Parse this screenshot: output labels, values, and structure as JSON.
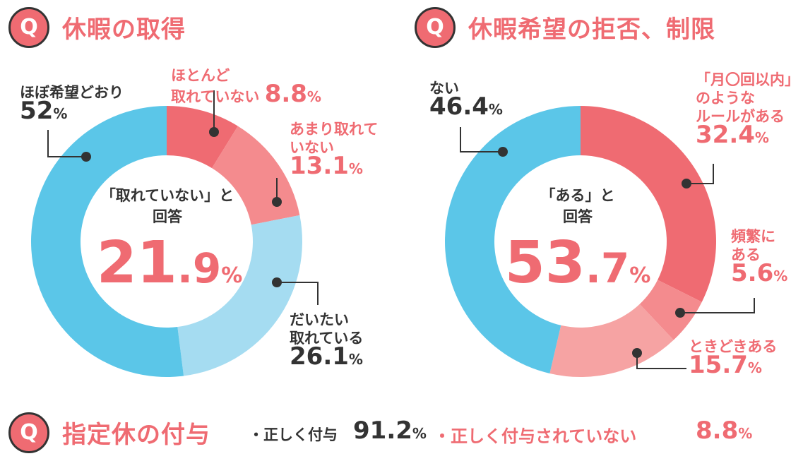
{
  "chart_data": [
    {
      "type": "pie",
      "title": "休暇の取得",
      "center_caption_1": "「取れていない」と",
      "center_caption_2": "回答",
      "center_value_int": "21",
      "center_value_dec": ".9",
      "center_value_unit": "%",
      "slices": [
        {
          "label_1": "ほとんど",
          "label_2": "取れていない",
          "value": 8.8,
          "value_text": "8.8",
          "color": "#ef6b72"
        },
        {
          "label_1": "あまり取れて",
          "label_2": "いない",
          "value": 13.1,
          "value_text": "13.1",
          "color": "#f48b8e"
        },
        {
          "label_1": "だいたい",
          "label_2": "取れている",
          "value": 26.1,
          "value_text": "26.1",
          "color": "#a5dcf1"
        },
        {
          "label_1": "ほぼ希望どおり",
          "label_2": "",
          "value": 52,
          "value_text": "52",
          "color": "#5bc6e8"
        }
      ]
    },
    {
      "type": "pie",
      "title": "休暇希望の拒否、制限",
      "center_caption_1": "「ある」と",
      "center_caption_2": "回答",
      "center_value_int": "53",
      "center_value_dec": ".7",
      "center_value_unit": "%",
      "slices": [
        {
          "label_1": "「月〇回以内」",
          "label_2": "のような",
          "label_3": "ルールがある",
          "value": 32.4,
          "value_text": "32.4",
          "color": "#ef6b72"
        },
        {
          "label_1": "頻繁に",
          "label_2": "ある",
          "value": 5.6,
          "value_text": "5.6",
          "color": "#f48b8e"
        },
        {
          "label_1": "ときどきある",
          "value": 15.7,
          "value_text": "15.7",
          "color": "#f6a3a3"
        },
        {
          "label_1": "ない",
          "value": 46.4,
          "value_text": "46.4",
          "color": "#5bc6e8"
        }
      ]
    }
  ],
  "q_label": "Q",
  "q3": {
    "title": "指定休の付与",
    "item1_label": "・正しく付与",
    "item1_value": "91.2",
    "item2_label": "・正しく付与されていない",
    "item2_value": "8.8",
    "unit": "%"
  },
  "colors": {
    "accent": "#ef6b72",
    "blue": "#5bc6e8",
    "text": "#333333"
  }
}
